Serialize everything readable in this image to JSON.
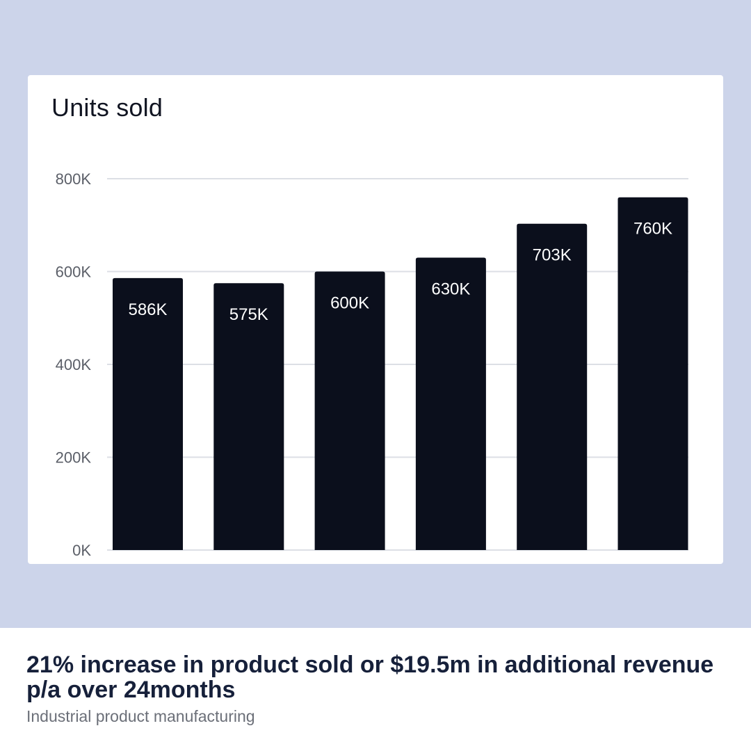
{
  "chart_data": {
    "type": "bar",
    "title": "Units sold",
    "xlabel": "",
    "ylabel": "",
    "categories": [
      "",
      "",
      "",
      "",
      "",
      ""
    ],
    "values": [
      586,
      575,
      600,
      630,
      703,
      760
    ],
    "data_labels": [
      "586K",
      "575K",
      "600K",
      "630K",
      "703K",
      "760K"
    ],
    "y_ticks": [
      "0K",
      "200K",
      "400K",
      "600K",
      "800K"
    ],
    "y_tick_values": [
      0,
      200,
      400,
      600,
      800
    ],
    "ylim": [
      0,
      800
    ],
    "grid": true,
    "legend": "none",
    "bar_color": "#0b0f1c",
    "grid_color": "#dcdfe5",
    "tick_color": "#5b5f68"
  },
  "caption": {
    "headline": "21% increase in product sold or $19.5m in additional revenue p/a over 24months",
    "subtitle": "Industrial product manufacturing"
  },
  "colors": {
    "background": "#ccd4ea",
    "card": "#ffffff",
    "headline": "#16203a"
  }
}
